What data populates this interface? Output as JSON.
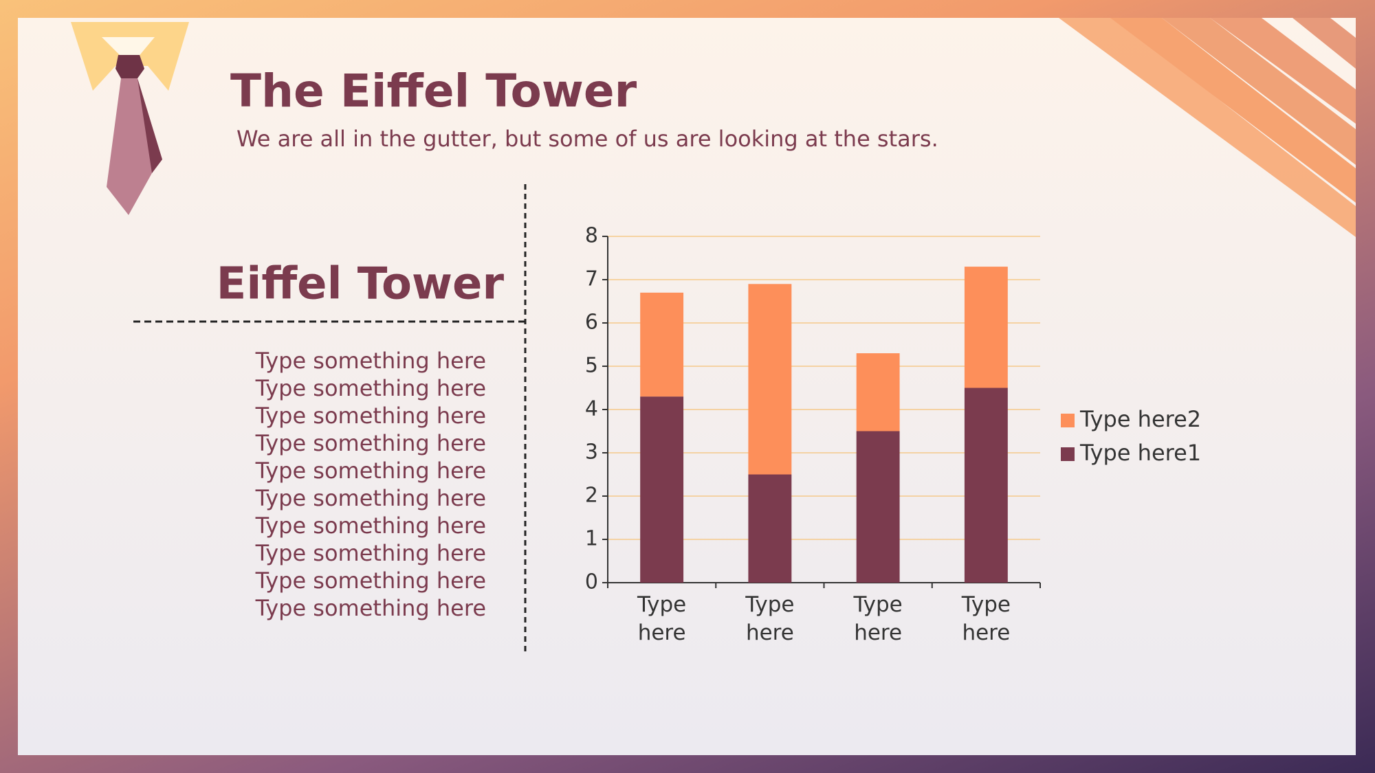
{
  "slide": {
    "title": "The Eiffel Tower",
    "subtitle": "We are all in the gutter, but some of us are looking at the stars.",
    "heading": "Eiffel Tower",
    "lines": [
      "Type something here",
      "Type something here",
      "Type something here",
      "Type something here",
      "Type something here",
      "Type something here",
      "Type something here",
      "Type something here",
      "Type something here",
      "Type something here"
    ]
  },
  "chart_data": {
    "type": "stacked_bar",
    "categories": [
      "Type here",
      "Type here",
      "Type here",
      "Type here"
    ],
    "series": [
      {
        "name": "Type here1",
        "color": "#7b3b4e",
        "values": [
          4.3,
          2.5,
          3.5,
          4.5
        ]
      },
      {
        "name": "Type here2",
        "color": "#fd8f5a",
        "values": [
          2.4,
          4.4,
          1.8,
          2.8
        ]
      }
    ],
    "ylim": [
      0,
      8
    ],
    "yticks": [
      0,
      1,
      2,
      3,
      4,
      5,
      6,
      7,
      8
    ],
    "grid": true,
    "legend": "right"
  }
}
